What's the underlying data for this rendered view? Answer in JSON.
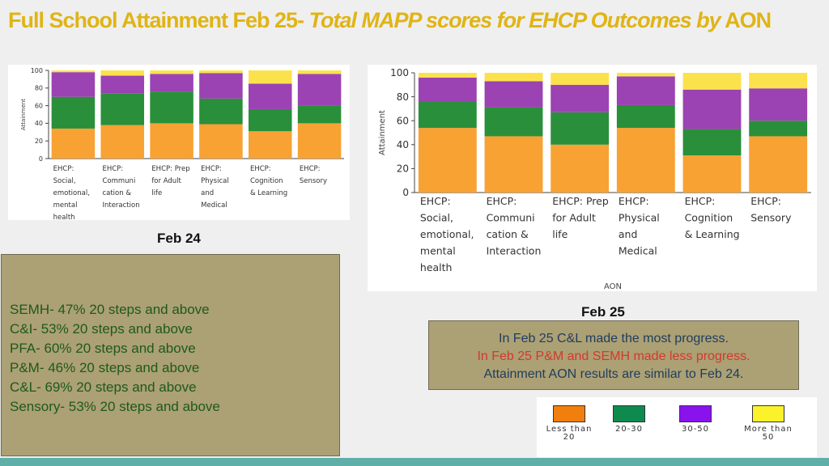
{
  "slide": {
    "title_main": "Full School Attainment Feb 25- ",
    "title_italic": "Total MAPP scores for EHCP Outcomes by",
    "title_end": " AON",
    "caption_feb24": "Feb 24",
    "caption_feb25": "Feb 25",
    "summary_lines": [
      "SEMH- 47% 20 steps and above",
      "C&I- 53% 20 steps and above",
      "PFA- 60% 20 steps and above",
      "P&M- 46% 20 steps and above",
      "C&L- 69% 20 steps and above",
      "Sensory- 53% 20 steps and above"
    ],
    "note_lines": [
      "In Feb 25 C&L made the most progress.",
      "In Feb 25 P&M and SEMH made less progress.",
      "Attainment AON results are similar to Feb 24."
    ],
    "legend": [
      {
        "label": "Less than 20",
        "color": "#f07f0e"
      },
      {
        "label": "20-30",
        "color": "#0f8a4e"
      },
      {
        "label": "30-50",
        "color": "#8a12ee"
      },
      {
        "label": "More than 50",
        "color": "#fbf22c"
      }
    ],
    "colors": {
      "title": "#e0b415",
      "panel": "#aca075",
      "summary_text": "#1d5a1b",
      "accent_bar": "#5eafa8"
    }
  },
  "chart_data": [
    {
      "type": "bar",
      "stacked": true,
      "title": "",
      "xlabel": "",
      "ylabel": "Attainment",
      "ylim": [
        0,
        100
      ],
      "yticks": [
        0,
        20,
        40,
        60,
        80,
        100
      ],
      "grid": false,
      "categories": [
        [
          "EHCP:",
          "Social,",
          "emotional,",
          "mental",
          "health"
        ],
        [
          "EHCP:",
          "Communi",
          "cation &",
          "Interaction"
        ],
        [
          "EHCP: Prep",
          "for Adult",
          "life"
        ],
        [
          "EHCP:",
          "Physical",
          "and",
          "Medical"
        ],
        [
          "EHCP:",
          "Cognition",
          "& Learning"
        ],
        [
          "EHCP:",
          "Sensory"
        ]
      ],
      "series": [
        {
          "color": "#f7a233",
          "values": [
            34,
            38,
            40,
            39,
            31,
            40
          ]
        },
        {
          "color": "#2a8f3a",
          "values": [
            36,
            36,
            36,
            29,
            25,
            20
          ]
        },
        {
          "color": "#9b43b2",
          "values": [
            28,
            20,
            20,
            29,
            29,
            36
          ]
        },
        {
          "color": "#fbe24c",
          "values": [
            2,
            6,
            4,
            3,
            15,
            4
          ]
        }
      ]
    },
    {
      "type": "bar",
      "stacked": true,
      "title": "",
      "xlabel": "AON",
      "ylabel": "Attainment",
      "ylim": [
        0,
        100
      ],
      "yticks": [
        0,
        20,
        40,
        60,
        80,
        100
      ],
      "grid": false,
      "categories": [
        [
          "EHCP:",
          "Social,",
          "emotional,",
          "mental",
          "health"
        ],
        [
          "EHCP:",
          "Communi",
          "cation &",
          "Interaction"
        ],
        [
          "EHCP: Prep",
          "for Adult",
          "life"
        ],
        [
          "EHCP:",
          "Physical",
          "and",
          "Medical"
        ],
        [
          "EHCP:",
          "Cognition",
          "& Learning"
        ],
        [
          "EHCP:",
          "Sensory"
        ]
      ],
      "series": [
        {
          "color": "#f7a233",
          "values": [
            54,
            47,
            40,
            54,
            31,
            47
          ]
        },
        {
          "color": "#2a8f3a",
          "values": [
            22,
            24,
            27,
            19,
            22,
            13
          ]
        },
        {
          "color": "#9b43b2",
          "values": [
            20,
            22,
            23,
            24,
            33,
            27
          ]
        },
        {
          "color": "#fbe24c",
          "values": [
            4,
            7,
            10,
            3,
            14,
            13
          ]
        }
      ]
    }
  ]
}
